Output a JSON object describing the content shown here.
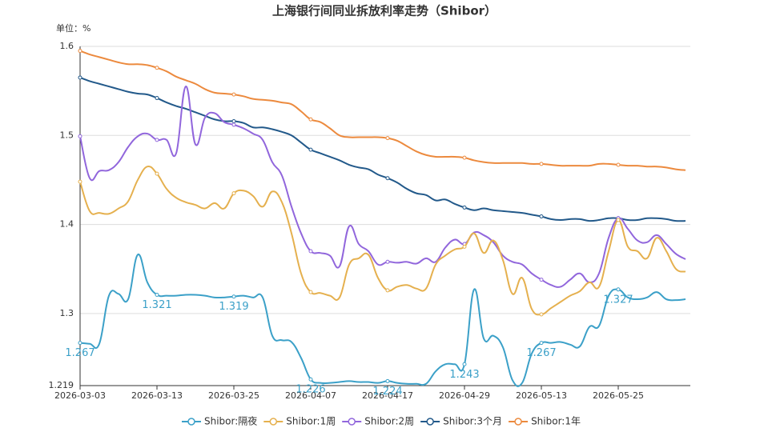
{
  "chart_data": {
    "type": "line",
    "title": "上海银行间同业拆放利率走势（Shibor）",
    "y_unit_label": "单位：%",
    "categories": [
      "2026-03-03",
      null,
      null,
      null,
      null,
      null,
      null,
      null,
      "2026-03-13",
      null,
      null,
      null,
      null,
      null,
      null,
      null,
      "2026-03-25",
      null,
      null,
      null,
      null,
      null,
      null,
      null,
      "2026-04-07",
      null,
      null,
      null,
      null,
      null,
      null,
      null,
      "2026-04-17",
      null,
      null,
      null,
      null,
      null,
      null,
      null,
      "2026-04-29",
      null,
      null,
      null,
      null,
      null,
      null,
      null,
      "2026-05-13",
      null,
      null,
      null,
      null,
      null,
      null,
      null,
      "2026-05-25",
      null,
      null,
      null,
      null,
      null,
      null,
      null
    ],
    "ylim": [
      1.219,
      1.6
    ],
    "yticks": [
      1.219,
      1.3,
      1.4,
      1.5,
      1.6
    ],
    "grid": true,
    "legend": "bottom",
    "series": [
      {
        "name": "Shibor:隔夜",
        "color": "#3ba0c8",
        "show_labels": true,
        "values": [
          1.267,
          1.266,
          1.266,
          1.32,
          1.322,
          1.316,
          1.366,
          1.335,
          1.321,
          1.32,
          1.32,
          1.321,
          1.321,
          1.32,
          1.318,
          1.318,
          1.319,
          1.32,
          1.318,
          1.318,
          1.275,
          1.27,
          1.268,
          1.25,
          1.226,
          1.222,
          1.222,
          1.223,
          1.224,
          1.223,
          1.223,
          1.222,
          1.224,
          1.222,
          1.221,
          1.221,
          1.221,
          1.235,
          1.243,
          1.243,
          1.243,
          1.327,
          1.272,
          1.275,
          1.262,
          1.225,
          1.222,
          1.255,
          1.267,
          1.267,
          1.268,
          1.265,
          1.263,
          1.285,
          1.286,
          1.32,
          1.327,
          1.318,
          1.316,
          1.318,
          1.324,
          1.316,
          1.315,
          1.316
        ]
      },
      {
        "name": "Shibor:1周",
        "color": "#e5b04e",
        "values": [
          1.448,
          1.415,
          1.413,
          1.412,
          1.418,
          1.426,
          1.45,
          1.465,
          1.457,
          1.44,
          1.43,
          1.425,
          1.422,
          1.418,
          1.424,
          1.418,
          1.435,
          1.438,
          1.432,
          1.42,
          1.437,
          1.425,
          1.39,
          1.345,
          1.324,
          1.323,
          1.32,
          1.318,
          1.355,
          1.362,
          1.366,
          1.34,
          1.326,
          1.33,
          1.332,
          1.328,
          1.328,
          1.355,
          1.365,
          1.372,
          1.375,
          1.39,
          1.368,
          1.382,
          1.36,
          1.322,
          1.34,
          1.305,
          1.299,
          1.306,
          1.313,
          1.32,
          1.325,
          1.335,
          1.33,
          1.37,
          1.405,
          1.375,
          1.37,
          1.362,
          1.385,
          1.37,
          1.35,
          1.347
        ]
      },
      {
        "name": "Shibor:2周",
        "color": "#9166dc",
        "values": [
          1.499,
          1.452,
          1.46,
          1.461,
          1.47,
          1.487,
          1.499,
          1.502,
          1.495,
          1.495,
          1.48,
          1.555,
          1.49,
          1.52,
          1.525,
          1.515,
          1.512,
          1.508,
          1.502,
          1.495,
          1.47,
          1.455,
          1.42,
          1.39,
          1.37,
          1.368,
          1.365,
          1.353,
          1.398,
          1.378,
          1.37,
          1.355,
          1.358,
          1.357,
          1.358,
          1.356,
          1.362,
          1.358,
          1.374,
          1.383,
          1.378,
          1.391,
          1.388,
          1.38,
          1.365,
          1.358,
          1.355,
          1.345,
          1.338,
          1.332,
          1.33,
          1.338,
          1.345,
          1.335,
          1.345,
          1.385,
          1.407,
          1.395,
          1.382,
          1.38,
          1.388,
          1.378,
          1.367,
          1.361
        ]
      },
      {
        "name": "Shibor:3个月",
        "color": "#22598a",
        "values": [
          1.565,
          1.561,
          1.558,
          1.555,
          1.552,
          1.549,
          1.547,
          1.546,
          1.542,
          1.537,
          1.533,
          1.53,
          1.526,
          1.522,
          1.518,
          1.516,
          1.516,
          1.514,
          1.509,
          1.509,
          1.507,
          1.504,
          1.5,
          1.492,
          1.484,
          1.48,
          1.476,
          1.472,
          1.467,
          1.464,
          1.462,
          1.456,
          1.452,
          1.447,
          1.44,
          1.435,
          1.433,
          1.427,
          1.428,
          1.423,
          1.419,
          1.416,
          1.418,
          1.416,
          1.415,
          1.414,
          1.413,
          1.411,
          1.409,
          1.406,
          1.405,
          1.406,
          1.406,
          1.404,
          1.405,
          1.407,
          1.407,
          1.405,
          1.405,
          1.407,
          1.407,
          1.406,
          1.404,
          1.404
        ]
      },
      {
        "name": "Shibor:1年",
        "color": "#ec8a3e",
        "values": [
          1.595,
          1.591,
          1.588,
          1.585,
          1.582,
          1.58,
          1.58,
          1.579,
          1.576,
          1.572,
          1.566,
          1.562,
          1.558,
          1.552,
          1.548,
          1.547,
          1.546,
          1.544,
          1.541,
          1.54,
          1.539,
          1.537,
          1.535,
          1.527,
          1.518,
          1.515,
          1.508,
          1.5,
          1.498,
          1.498,
          1.498,
          1.498,
          1.497,
          1.494,
          1.488,
          1.482,
          1.478,
          1.476,
          1.476,
          1.476,
          1.475,
          1.472,
          1.47,
          1.469,
          1.469,
          1.469,
          1.469,
          1.468,
          1.468,
          1.467,
          1.466,
          1.466,
          1.466,
          1.466,
          1.468,
          1.468,
          1.467,
          1.466,
          1.466,
          1.465,
          1.465,
          1.464,
          1.462,
          1.461
        ]
      }
    ]
  }
}
